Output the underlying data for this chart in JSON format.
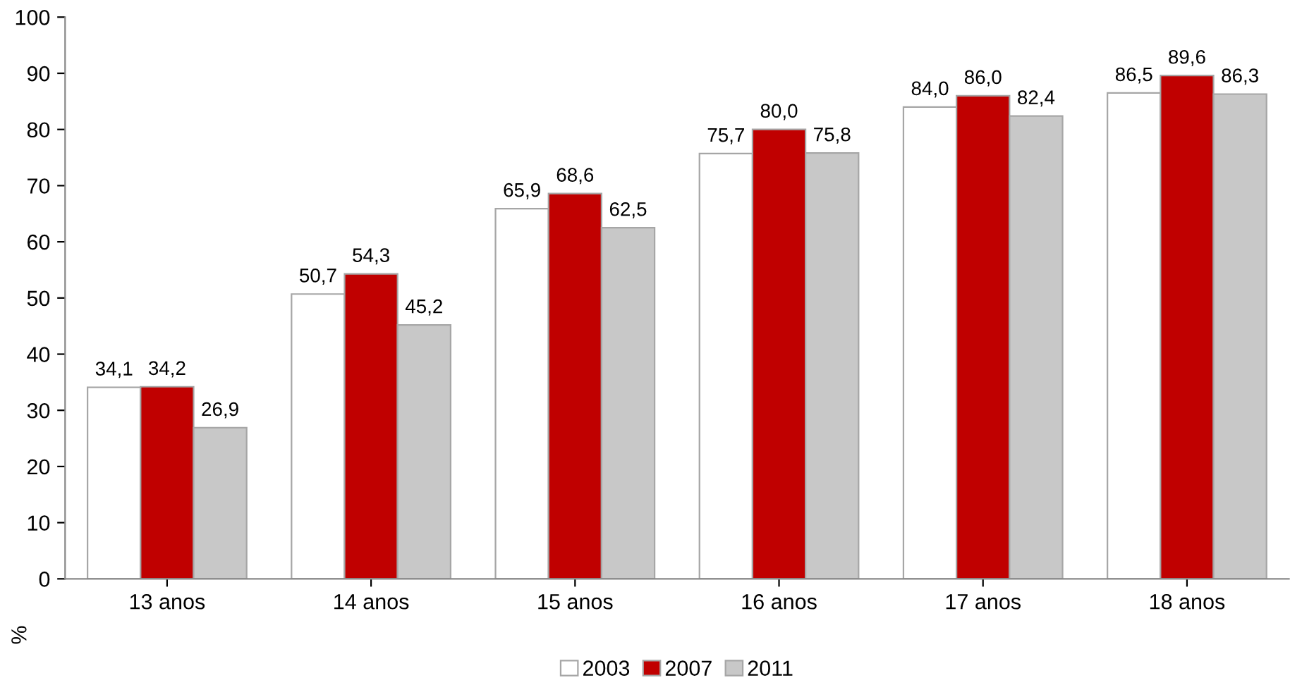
{
  "chart_data": {
    "type": "bar",
    "ylabel": "%",
    "categories": [
      "13 anos",
      "14 anos",
      "15 anos",
      "16 anos",
      "17 anos",
      "18 anos"
    ],
    "series": [
      {
        "name": "2003",
        "color": "#ffffff",
        "values": [
          34.1,
          50.7,
          65.9,
          75.7,
          84.0,
          86.5
        ],
        "value_labels": [
          "34,1",
          "50,7",
          "65,9",
          "75,7",
          "84,0",
          "86,5"
        ]
      },
      {
        "name": "2007",
        "color": "#c00000",
        "values": [
          34.2,
          54.3,
          68.6,
          80.0,
          86.0,
          89.6
        ],
        "value_labels": [
          "34,2",
          "54,3",
          "68,6",
          "80,0",
          "86,0",
          "89,6"
        ]
      },
      {
        "name": "2011",
        "color": "#c8c8c8",
        "values": [
          26.9,
          45.2,
          62.5,
          75.8,
          82.4,
          86.3
        ],
        "value_labels": [
          "26,9",
          "45,2",
          "62,5",
          "75,8",
          "82,4",
          "86,3"
        ]
      }
    ],
    "ylim": [
      0,
      100
    ],
    "yticks": [
      0,
      10,
      20,
      30,
      40,
      50,
      60,
      70,
      80,
      90,
      100
    ],
    "grid": false,
    "legend": "bottom"
  }
}
